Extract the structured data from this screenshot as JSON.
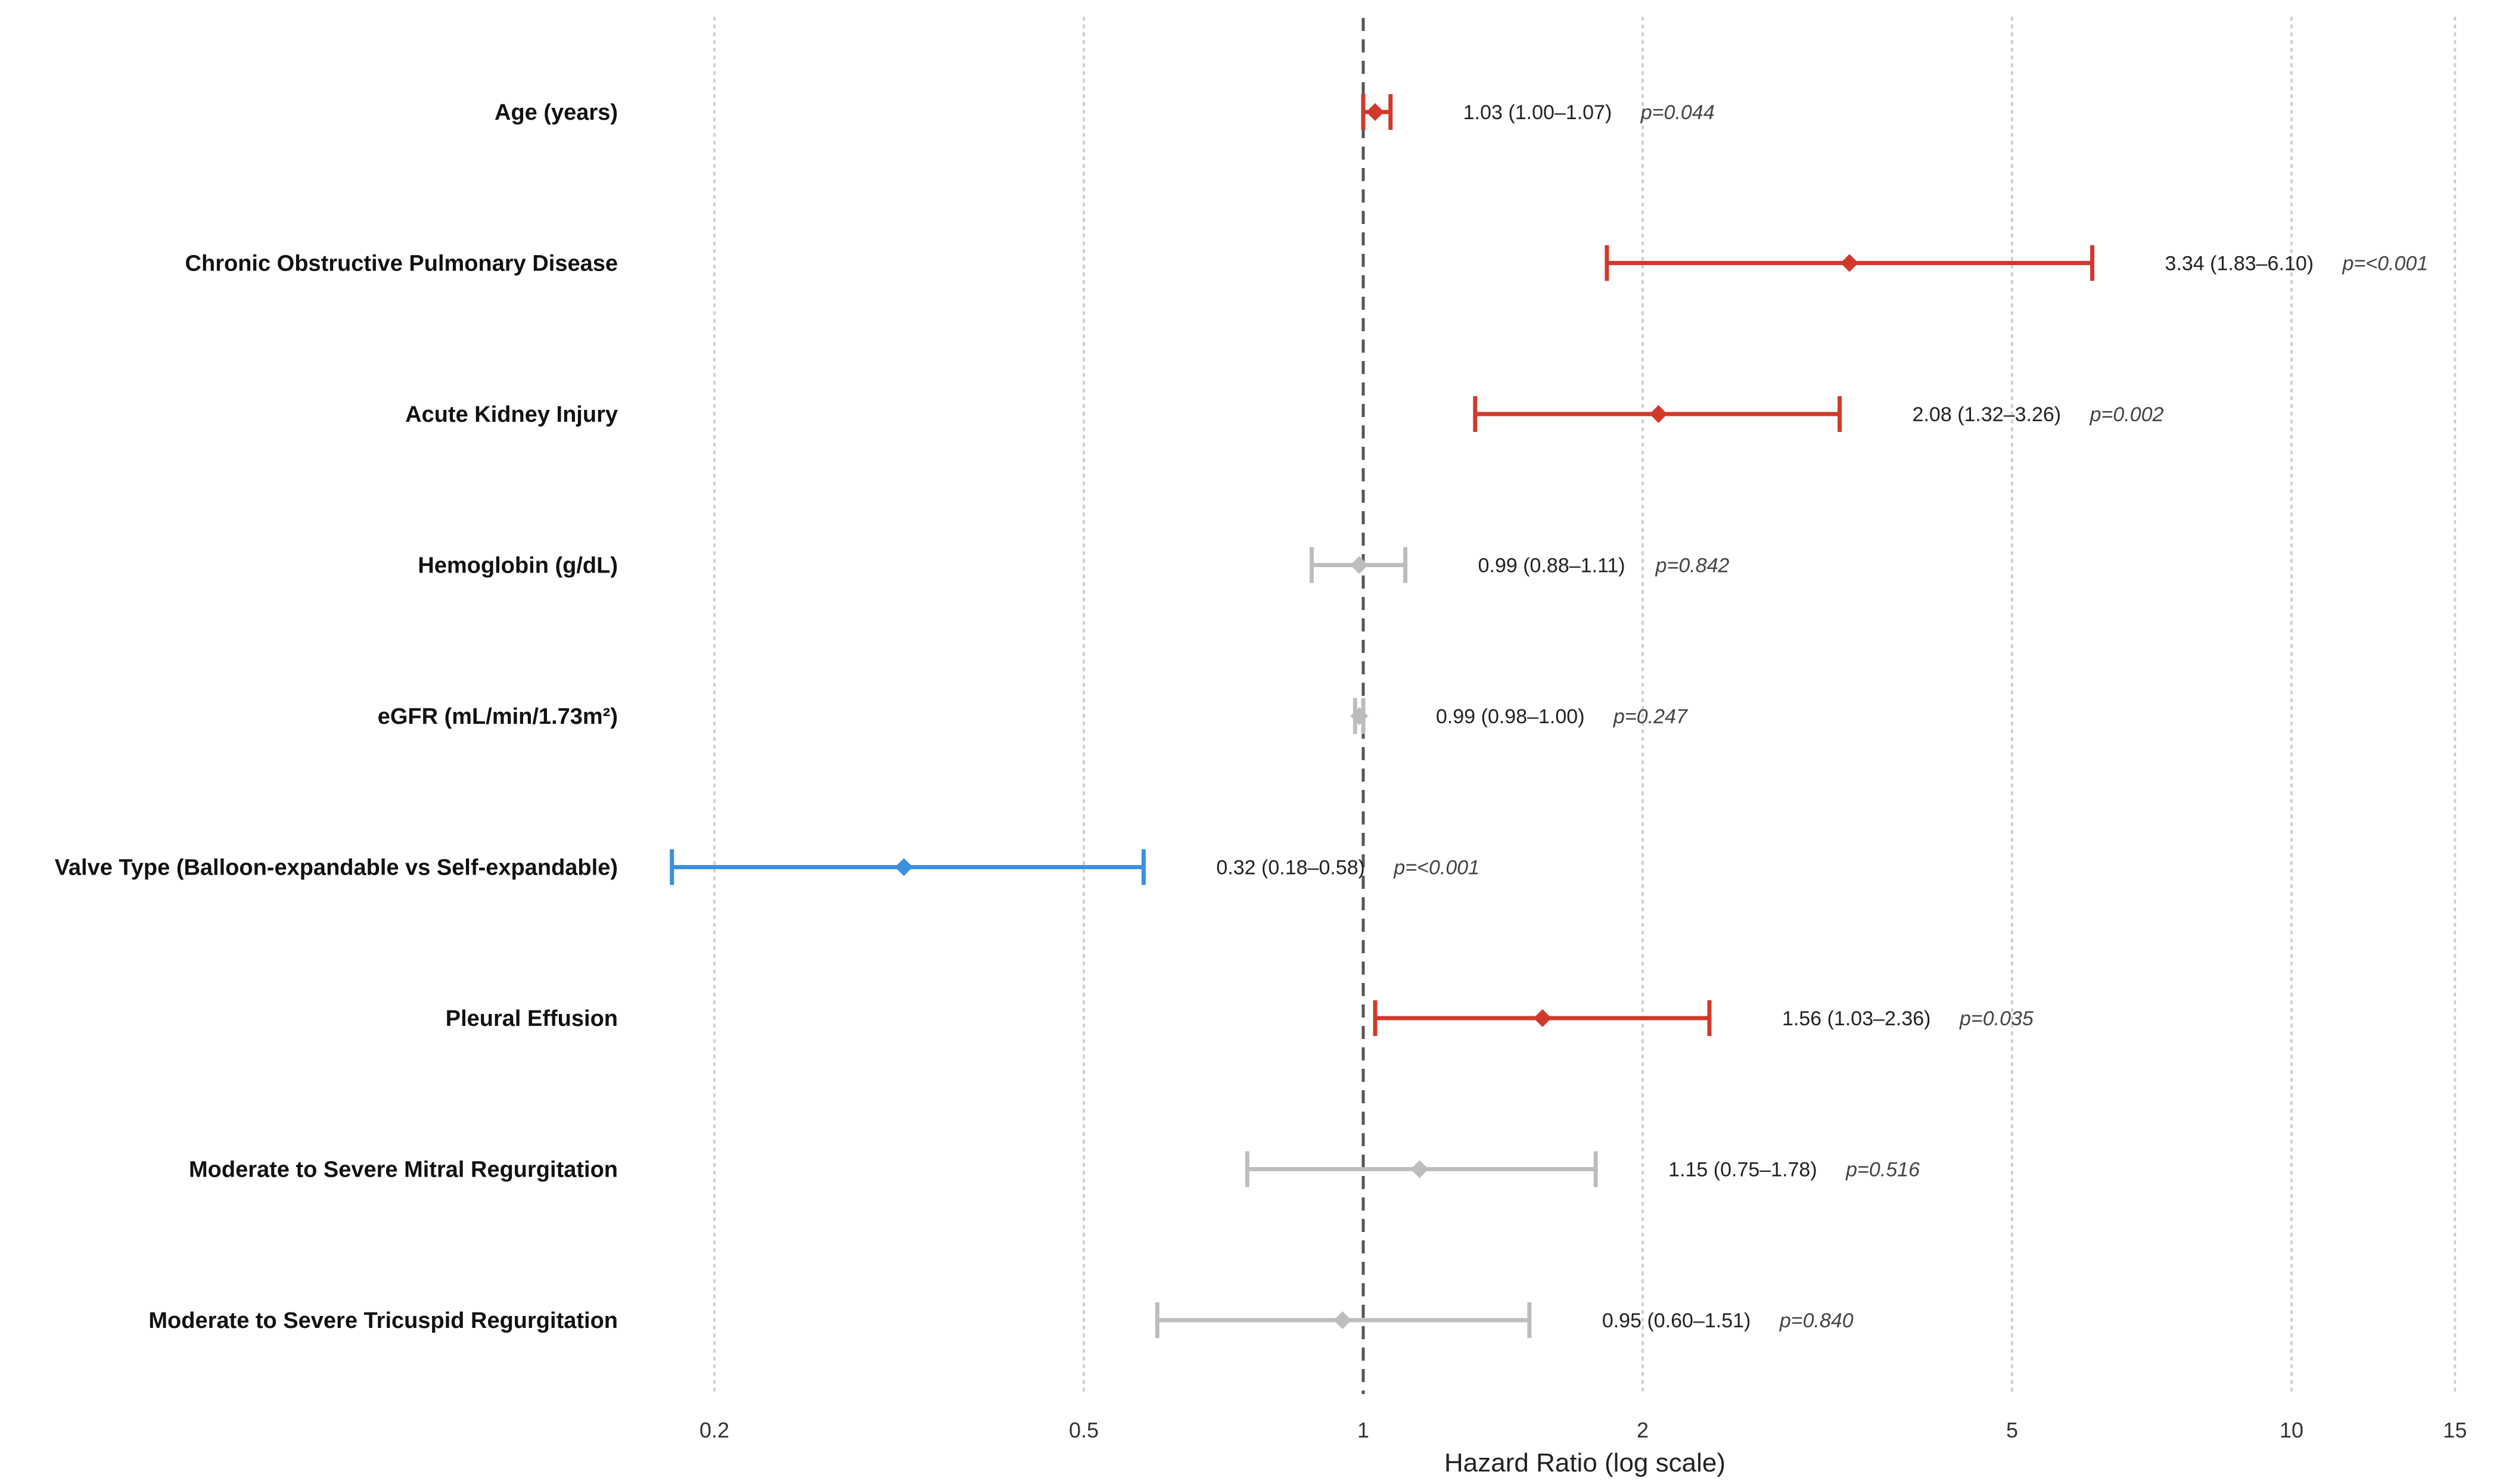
{
  "chart_data": {
    "type": "forest",
    "xlabel": "Hazard Ratio (log scale)",
    "x_scale": "log",
    "xlim": [
      0.15,
      16
    ],
    "x_ticks": [
      {
        "value": 0.2,
        "label": "0.2"
      },
      {
        "value": 0.5,
        "label": "0.5"
      },
      {
        "value": 1,
        "label": "1"
      },
      {
        "value": 2,
        "label": "2"
      },
      {
        "value": 5,
        "label": "5"
      },
      {
        "value": 10,
        "label": "10"
      },
      {
        "value": 15,
        "label": "15"
      }
    ],
    "reference_line": 1,
    "grid": true,
    "colors": {
      "risk": "#d0392b",
      "protective": "#3b8fe0",
      "nonsignificant": "#bdbdbd",
      "reference": "#555555",
      "grid": "#cfcfcf"
    },
    "rows": [
      {
        "label": "Age (years)",
        "hr": 1.03,
        "lo": 1.0,
        "hi": 1.07,
        "est_text": "1.03 (1.00–1.07)",
        "p_text": "p=0.044",
        "group": "risk"
      },
      {
        "label": "Chronic Obstructive Pulmonary Disease",
        "hr": 3.34,
        "lo": 1.83,
        "hi": 6.1,
        "est_text": "3.34 (1.83–6.10)",
        "p_text": "p=<0.001",
        "group": "risk"
      },
      {
        "label": "Acute Kidney Injury",
        "hr": 2.08,
        "lo": 1.32,
        "hi": 3.26,
        "est_text": "2.08 (1.32–3.26)",
        "p_text": "p=0.002",
        "group": "risk"
      },
      {
        "label": "Hemoglobin (g/dL)",
        "hr": 0.99,
        "lo": 0.88,
        "hi": 1.11,
        "est_text": "0.99 (0.88–1.11)",
        "p_text": "p=0.842",
        "group": "nonsignificant"
      },
      {
        "label": "eGFR (mL/min/1.73m²)",
        "hr": 0.99,
        "lo": 0.98,
        "hi": 1.0,
        "est_text": "0.99 (0.98–1.00)",
        "p_text": "p=0.247",
        "group": "nonsignificant"
      },
      {
        "label": "Valve Type (Balloon-expandable vs Self-expandable)",
        "hr": 0.32,
        "lo": 0.18,
        "hi": 0.58,
        "est_text": "0.32 (0.18–0.58)",
        "p_text": "p=<0.001",
        "group": "protective"
      },
      {
        "label": "Pleural Effusion",
        "hr": 1.56,
        "lo": 1.03,
        "hi": 2.36,
        "est_text": "1.56 (1.03–2.36)",
        "p_text": "p=0.035",
        "group": "risk"
      },
      {
        "label": "Moderate to Severe Mitral Regurgitation",
        "hr": 1.15,
        "lo": 0.75,
        "hi": 1.78,
        "est_text": "1.15 (0.75–1.78)",
        "p_text": "p=0.516",
        "group": "nonsignificant"
      },
      {
        "label": "Moderate to Severe Tricuspid Regurgitation",
        "hr": 0.95,
        "lo": 0.6,
        "hi": 1.51,
        "est_text": "0.95 (0.60–1.51)",
        "p_text": "p=0.840",
        "group": "nonsignificant"
      }
    ]
  }
}
